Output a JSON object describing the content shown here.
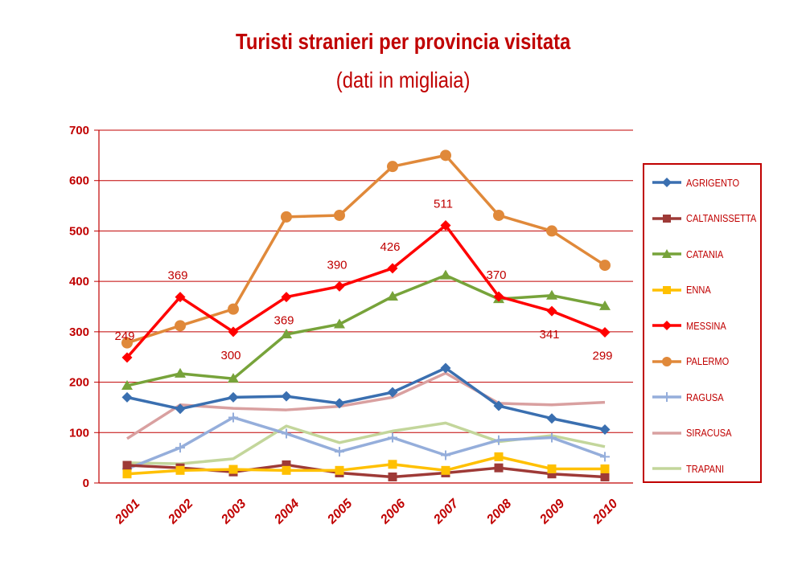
{
  "chart_data": {
    "type": "line",
    "title": "Turisti stranieri per provincia visitata",
    "subtitle": "(dati in migliaia)",
    "categories": [
      "2001",
      "2002",
      "2003",
      "2004",
      "2005",
      "2006",
      "2007",
      "2008",
      "2009",
      "2010"
    ],
    "ylim": [
      0,
      700
    ],
    "yticks": [
      0,
      100,
      200,
      300,
      400,
      500,
      600,
      700
    ],
    "grid": true,
    "legend_position": "right",
    "series": [
      {
        "name": "AGRIGENTO",
        "color": "#3a6fb0",
        "marker": "diamond",
        "values": [
          170,
          147,
          170,
          172,
          158,
          180,
          228,
          153,
          128,
          106
        ]
      },
      {
        "name": "CALTANISSETTA",
        "color": "#9e3a37",
        "marker": "square",
        "values": [
          35,
          30,
          22,
          36,
          20,
          12,
          20,
          30,
          18,
          12
        ]
      },
      {
        "name": "CATANIA",
        "color": "#77a33a",
        "marker": "triangle",
        "values": [
          193,
          217,
          207,
          295,
          315,
          370,
          412,
          365,
          372,
          351
        ]
      },
      {
        "name": "ENNA",
        "color": "#ffc000",
        "marker": "square",
        "values": [
          18,
          25,
          27,
          25,
          25,
          37,
          25,
          52,
          28,
          28
        ]
      },
      {
        "name": "MESSINA",
        "color": "#ff0000",
        "marker": "diamond",
        "values": [
          249,
          369,
          300,
          369,
          390,
          426,
          511,
          370,
          341,
          299
        ]
      },
      {
        "name": "PALERMO",
        "color": "#e0893a",
        "marker": "circle",
        "values": [
          278,
          312,
          345,
          528,
          531,
          628,
          650,
          531,
          500,
          432
        ]
      },
      {
        "name": "RAGUSA",
        "color": "#95aedb",
        "marker": "cross",
        "values": [
          28,
          70,
          130,
          98,
          62,
          90,
          55,
          85,
          90,
          52
        ]
      },
      {
        "name": "SIRACUSA",
        "color": "#d9a0a0",
        "marker": "none",
        "values": [
          88,
          155,
          148,
          145,
          152,
          170,
          218,
          158,
          155,
          160
        ]
      },
      {
        "name": "TRAPANI",
        "color": "#c3d69b",
        "marker": "none",
        "values": [
          40,
          38,
          48,
          113,
          80,
          103,
          119,
          82,
          94,
          72
        ]
      }
    ],
    "data_labels": [
      {
        "series": "MESSINA",
        "index": 0,
        "text": "249",
        "place": "above"
      },
      {
        "series": "MESSINA",
        "index": 1,
        "text": "369",
        "place": "above"
      },
      {
        "series": "MESSINA",
        "index": 2,
        "text": "300",
        "place": "below"
      },
      {
        "series": "MESSINA",
        "index": 3,
        "text": "369",
        "place": "below"
      },
      {
        "series": "MESSINA",
        "index": 4,
        "text": "390",
        "place": "above"
      },
      {
        "series": "MESSINA",
        "index": 5,
        "text": "426",
        "place": "above"
      },
      {
        "series": "MESSINA",
        "index": 6,
        "text": "511",
        "place": "above"
      },
      {
        "series": "MESSINA",
        "index": 7,
        "text": "370",
        "place": "above"
      },
      {
        "series": "MESSINA",
        "index": 8,
        "text": "341",
        "place": "below"
      },
      {
        "series": "MESSINA",
        "index": 9,
        "text": "299",
        "place": "below"
      }
    ]
  }
}
